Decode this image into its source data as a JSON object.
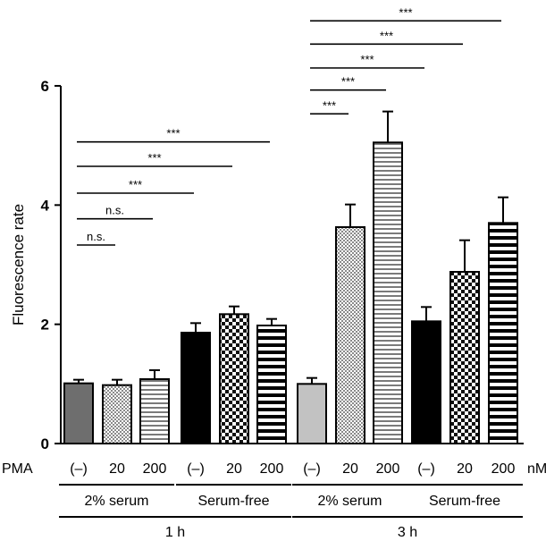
{
  "chart_data": {
    "type": "bar",
    "title": "",
    "xlabel": "",
    "ylabel": "Fluorescence rate",
    "ylim": [
      0,
      6
    ],
    "yticks": [
      "0",
      "2",
      "4",
      "6"
    ],
    "grid": false,
    "legend": "none",
    "row_label": "PMA",
    "unit_label": "nM",
    "categories": [
      "(–)",
      "20",
      "200",
      "(–)",
      "20",
      "200",
      "(–)",
      "20",
      "200",
      "(–)",
      "20",
      "200"
    ],
    "values": [
      1.01,
      0.98,
      1.08,
      1.86,
      2.17,
      1.98,
      1.0,
      3.63,
      5.05,
      2.05,
      2.88,
      3.7
    ],
    "errors": [
      0.06,
      0.09,
      0.15,
      0.16,
      0.13,
      0.11,
      0.1,
      0.38,
      0.52,
      0.24,
      0.53,
      0.43
    ],
    "fills": [
      "dark-gray",
      "dots",
      "horizontal-stripes",
      "black",
      "checker",
      "thick-stripes",
      "light-gray",
      "dots",
      "horizontal-stripes",
      "black",
      "checker",
      "thick-stripes"
    ],
    "groups": [
      {
        "label": "2% serum",
        "bars": [
          0,
          2
        ]
      },
      {
        "label": "Serum-free",
        "bars": [
          3,
          5
        ]
      },
      {
        "label": "2% serum",
        "bars": [
          6,
          8
        ]
      },
      {
        "label": "Serum-free",
        "bars": [
          9,
          11
        ]
      }
    ],
    "timepoints": [
      {
        "label": "1 h",
        "bars": [
          0,
          5
        ]
      },
      {
        "label": "3 h",
        "bars": [
          6,
          11
        ]
      }
    ],
    "significance": [
      {
        "from": 0,
        "to": 1,
        "label": "n.s.",
        "level": 3.33
      },
      {
        "from": 0,
        "to": 2,
        "label": "n.s.",
        "level": 3.77
      },
      {
        "from": 0,
        "to": 3,
        "label": "***",
        "level": 4.2
      },
      {
        "from": 0,
        "to": 4,
        "label": "***",
        "level": 4.65
      },
      {
        "from": 0,
        "to": 5,
        "label": "***",
        "level": 5.06
      },
      {
        "from": 6,
        "to": 7,
        "label": "***",
        "level": 5.53
      },
      {
        "from": 6,
        "to": 8,
        "label": "***",
        "level": 5.93
      },
      {
        "from": 6,
        "to": 9,
        "label": "***",
        "level": 6.3
      },
      {
        "from": 6,
        "to": 10,
        "label": "***",
        "level": 6.7
      },
      {
        "from": 6,
        "to": 11,
        "label": "***",
        "level": 7.09
      }
    ]
  }
}
